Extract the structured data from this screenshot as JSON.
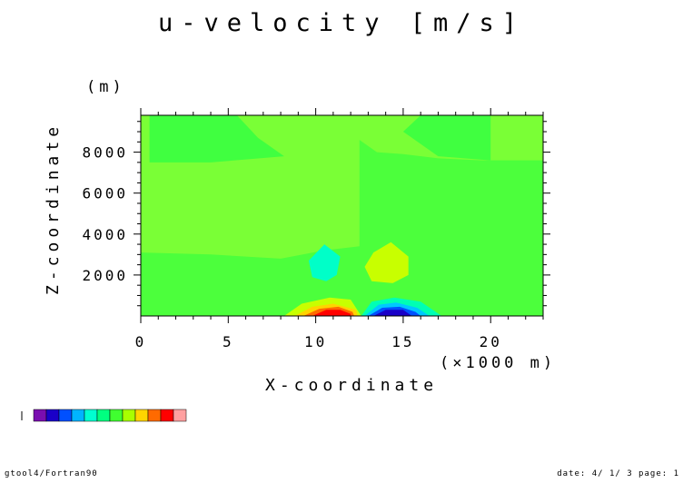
{
  "chart_data": {
    "type": "heatmap",
    "title": "u-velocity [m/s]",
    "xlabel": "X-coordinate",
    "ylabel": "Z-coordinate",
    "x_unit": "(×1000 m)",
    "y_unit": "(m)",
    "xlim": [
      0,
      23
    ],
    "ylim": [
      0,
      9800
    ],
    "x_ticks": [
      0,
      5,
      10,
      15,
      20
    ],
    "y_ticks": [
      2000,
      4000,
      6000,
      8000
    ],
    "x_tick_labels": [
      "0",
      "5",
      "10",
      "15",
      "20"
    ],
    "y_tick_labels": [
      "2000",
      "4000",
      "6000",
      "8000"
    ],
    "colorbar": [
      "#7a0eb0",
      "#1a00c8",
      "#0050ff",
      "#00b4ff",
      "#00ffd0",
      "#00ff80",
      "#40ff30",
      "#a8ff00",
      "#ffd400",
      "#ff6a00",
      "#ff0000",
      "#ffa0a0"
    ],
    "background_color": "#4cff3c",
    "regions": [
      {
        "level": "lighter_green",
        "color": "#7aff36",
        "polygon": [
          [
            0,
            9800
          ],
          [
            23,
            9800
          ],
          [
            23,
            7600
          ],
          [
            19.5,
            7600
          ],
          [
            17,
            7700
          ],
          [
            15,
            7900
          ],
          [
            13.5,
            8000
          ],
          [
            12.5,
            8600
          ],
          [
            12.5,
            3400
          ],
          [
            10.5,
            3200
          ],
          [
            8,
            2800
          ],
          [
            4,
            3000
          ],
          [
            0,
            3100
          ]
        ]
      },
      {
        "level": "medium_green",
        "color": "#40ff40",
        "polygon": [
          [
            0.5,
            9800
          ],
          [
            5.5,
            9800
          ],
          [
            6.7,
            8700
          ],
          [
            8.2,
            7800
          ],
          [
            4,
            7500
          ],
          [
            0.5,
            7500
          ]
        ]
      },
      {
        "level": "medium_green",
        "color": "#40ff40",
        "polygon": [
          [
            20,
            9800
          ],
          [
            16,
            9800
          ],
          [
            15,
            9000
          ],
          [
            17,
            7800
          ],
          [
            20,
            7600
          ]
        ]
      },
      {
        "level": "cyan",
        "color": "#00ffc8",
        "polygon": [
          [
            10.5,
            3500
          ],
          [
            11.4,
            2900
          ],
          [
            11.2,
            2000
          ],
          [
            10.6,
            1700
          ],
          [
            9.8,
            1900
          ],
          [
            9.6,
            2700
          ]
        ]
      },
      {
        "level": "yellow_green",
        "color": "#c8ff00",
        "polygon": [
          [
            14.3,
            3600
          ],
          [
            15.3,
            2900
          ],
          [
            15.3,
            2000
          ],
          [
            14.4,
            1600
          ],
          [
            13.2,
            1700
          ],
          [
            12.8,
            2400
          ],
          [
            13.3,
            3100
          ]
        ]
      },
      {
        "level": "yellow_green",
        "color": "#c8ff00",
        "polygon": [
          [
            8.2,
            0
          ],
          [
            9.2,
            600
          ],
          [
            10.8,
            900
          ],
          [
            12,
            800
          ],
          [
            12.6,
            0
          ]
        ]
      },
      {
        "level": "yellow",
        "color": "#ffd400",
        "polygon": [
          [
            8.8,
            0
          ],
          [
            9.8,
            450
          ],
          [
            11,
            600
          ],
          [
            12.3,
            300
          ],
          [
            12.4,
            0
          ]
        ]
      },
      {
        "level": "orange",
        "color": "#ff6a00",
        "polygon": [
          [
            9.3,
            0
          ],
          [
            10.2,
            350
          ],
          [
            11.3,
            450
          ],
          [
            12.1,
            200
          ],
          [
            12.2,
            0
          ]
        ]
      },
      {
        "level": "red",
        "color": "#ff0000",
        "polygon": [
          [
            9.8,
            0
          ],
          [
            10.6,
            300
          ],
          [
            11.4,
            300
          ],
          [
            12,
            100
          ],
          [
            12,
            0
          ]
        ]
      },
      {
        "level": "light_cyan",
        "color": "#00ffb4",
        "polygon": [
          [
            12.6,
            0
          ],
          [
            13.2,
            700
          ],
          [
            14.5,
            900
          ],
          [
            16,
            700
          ],
          [
            17.2,
            0
          ]
        ]
      },
      {
        "level": "cyan_blue",
        "color": "#00c8ff",
        "polygon": [
          [
            12.8,
            0
          ],
          [
            13.6,
            550
          ],
          [
            14.6,
            650
          ],
          [
            15.8,
            400
          ],
          [
            16.5,
            0
          ]
        ]
      },
      {
        "level": "blue",
        "color": "#0050ff",
        "polygon": [
          [
            13,
            0
          ],
          [
            13.8,
            400
          ],
          [
            14.8,
            450
          ],
          [
            15.7,
            200
          ],
          [
            16,
            0
          ]
        ]
      },
      {
        "level": "dark_blue",
        "color": "#1a00c8",
        "polygon": [
          [
            13.3,
            0
          ],
          [
            14,
            300
          ],
          [
            15,
            300
          ],
          [
            15.5,
            0
          ]
        ]
      }
    ]
  },
  "footer": {
    "left": "gtool4/Fortran90",
    "right": "date: 4/ 1/ 3 page: 1"
  }
}
